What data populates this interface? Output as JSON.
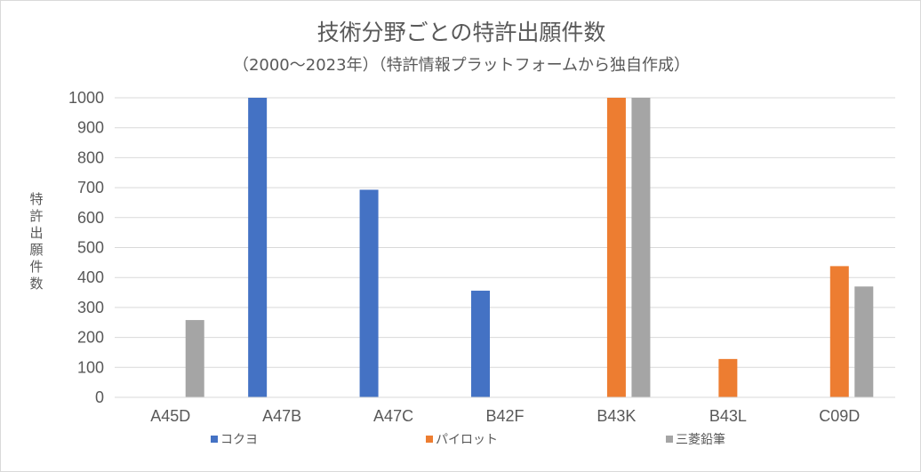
{
  "chart_data": {
    "type": "bar",
    "title": "技術分野ごとの特許出願件数",
    "subtitle": "（2000～2023年）（特許情報プラットフォームから独自作成）",
    "ylabel": "特許出願件数",
    "xlabel": "",
    "categories": [
      "A45D",
      "A47B",
      "A47C",
      "B42F",
      "B43K",
      "B43L",
      "C09D"
    ],
    "series": [
      {
        "name": "コクヨ",
        "color": "#4472c4",
        "values": [
          null,
          1000,
          693,
          356,
          null,
          null,
          null
        ]
      },
      {
        "name": "パイロット",
        "color": "#ed7d31",
        "values": [
          null,
          null,
          null,
          null,
          1000,
          128,
          438
        ]
      },
      {
        "name": "三菱鉛筆",
        "color": "#a5a5a5",
        "values": [
          258,
          null,
          null,
          null,
          1000,
          null,
          370
        ]
      }
    ],
    "ylim": [
      0,
      1000
    ],
    "yticks": [
      0,
      100,
      200,
      300,
      400,
      500,
      600,
      700,
      800,
      900,
      1000
    ],
    "grid": true,
    "legend_position": "bottom"
  }
}
